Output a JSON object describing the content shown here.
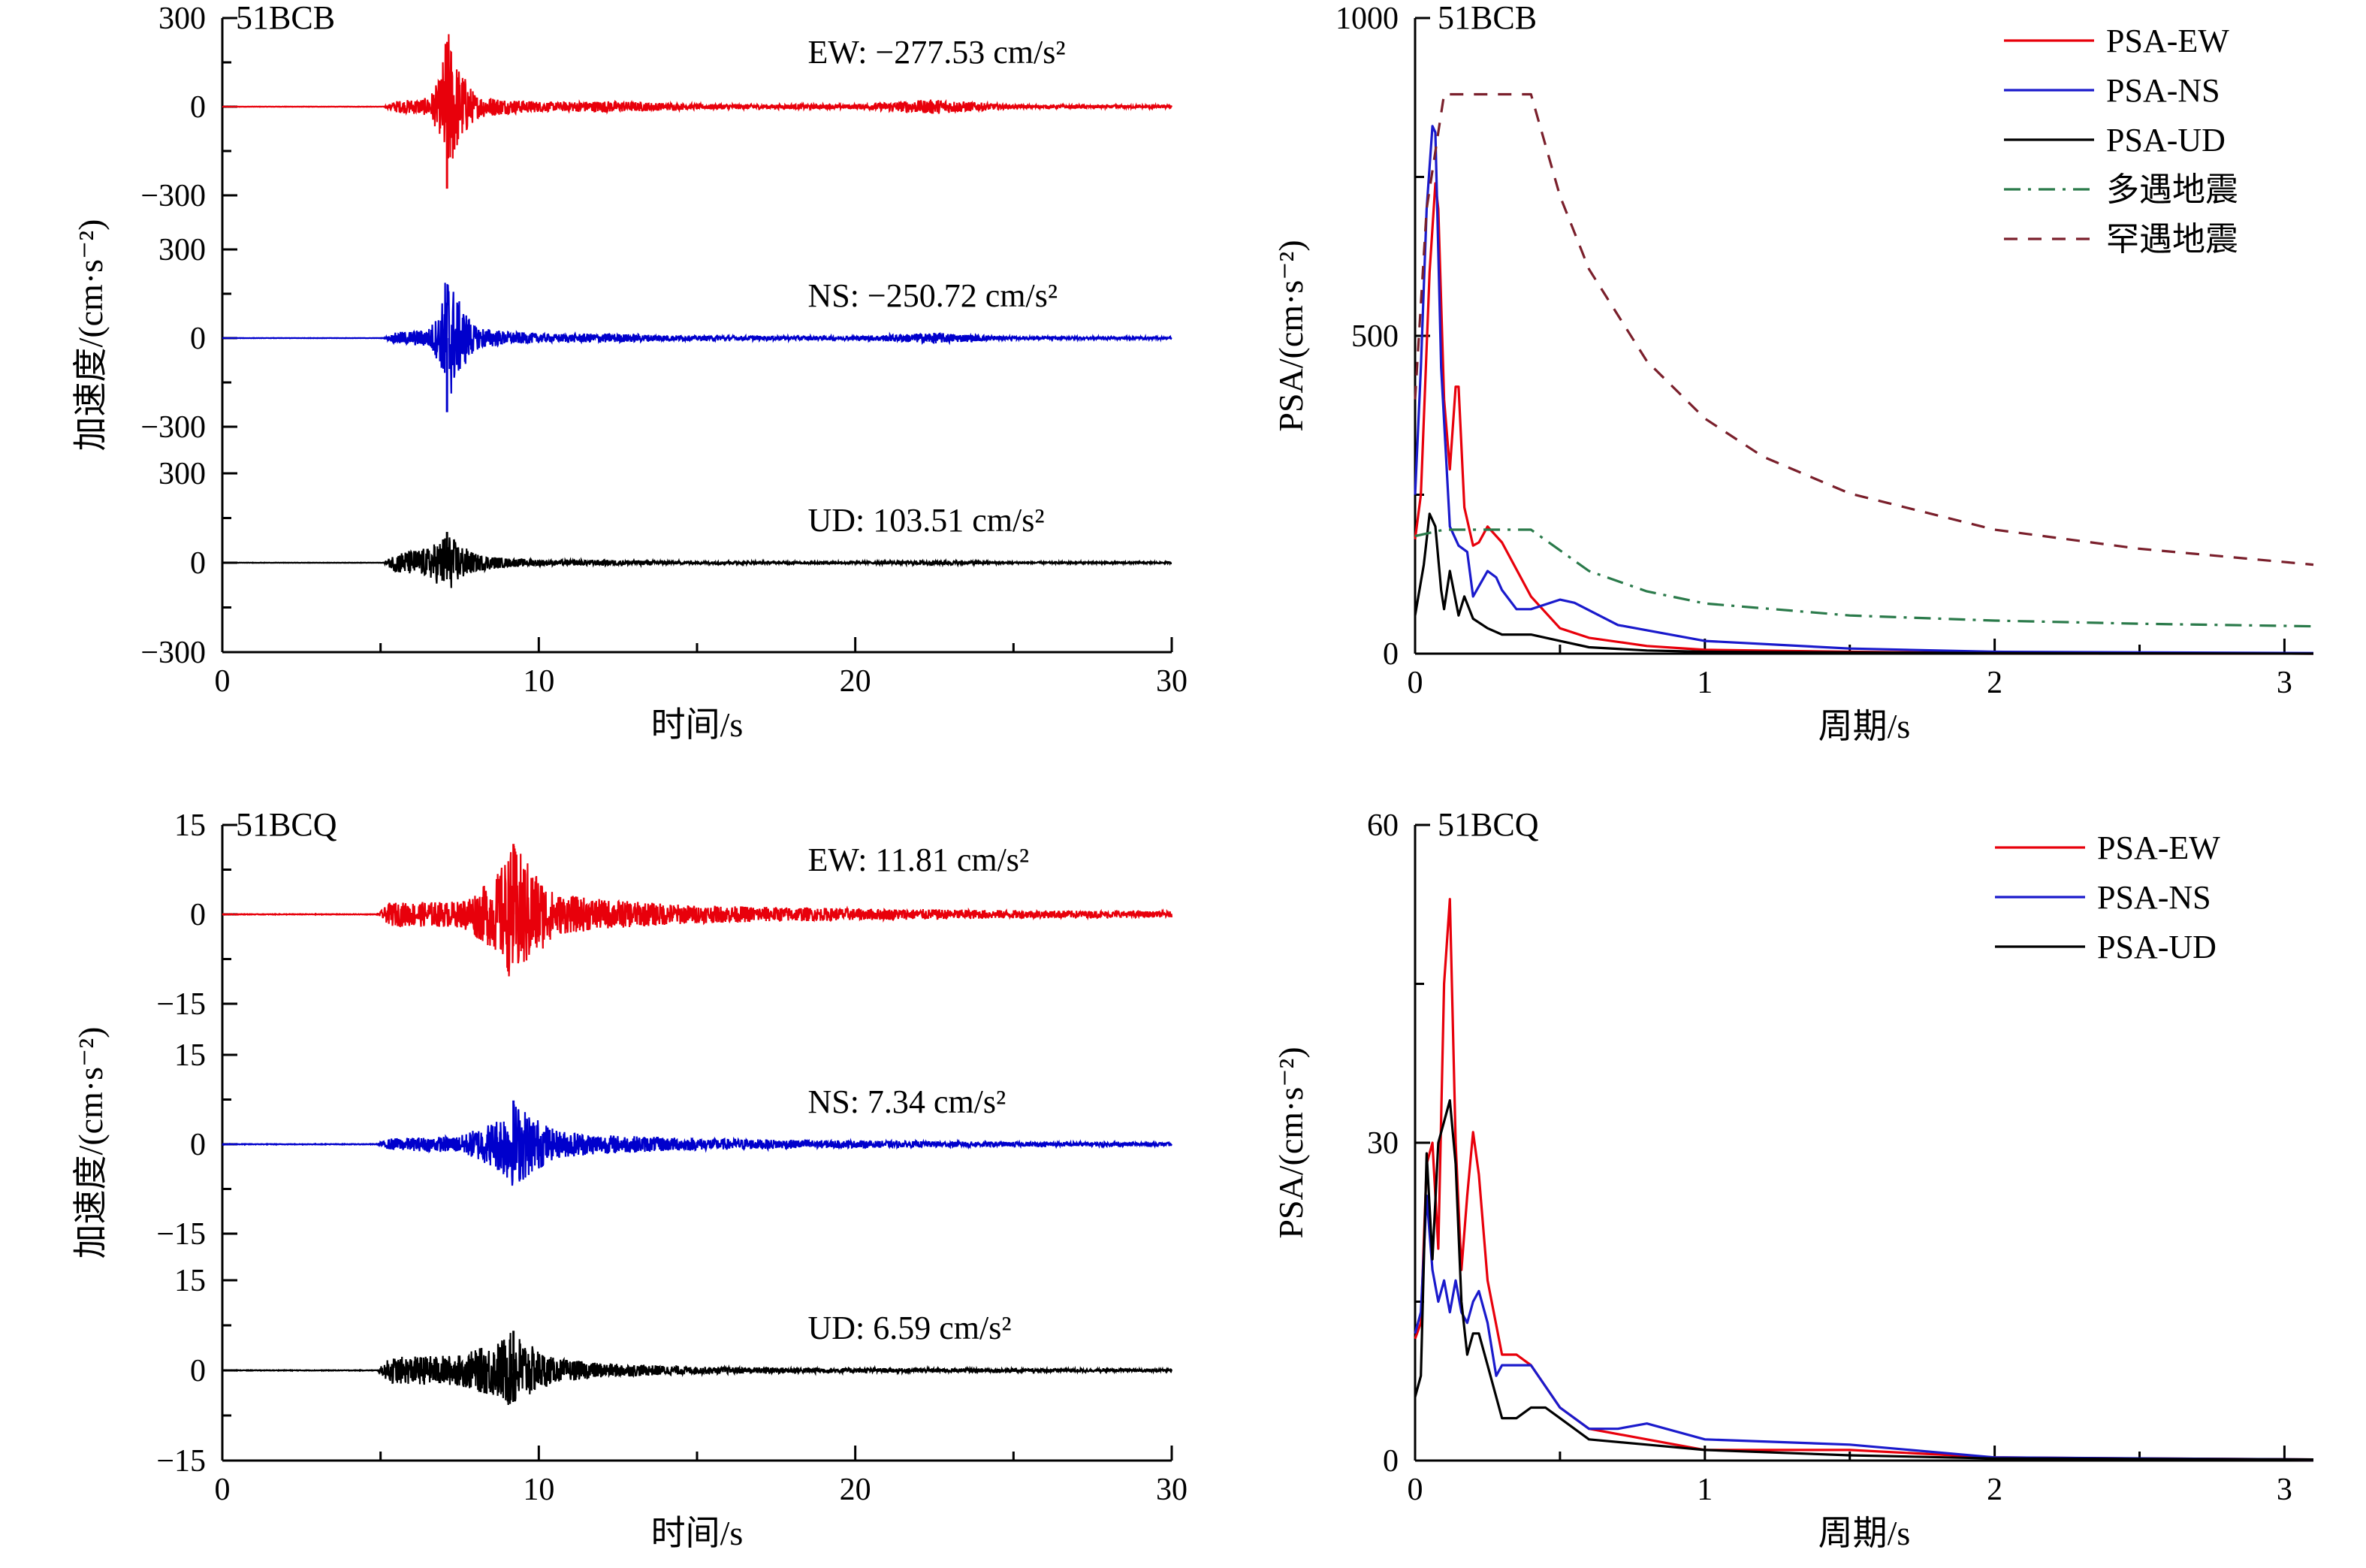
{
  "chart_data": [
    {
      "type": "line",
      "chart": "51BCB acceleration time histories",
      "station": "51BCB",
      "xlabel": "时间/s",
      "ylabel": "加速度/(cm·s⁻²)",
      "xlim": [
        0,
        30
      ],
      "xticks": [
        "0",
        "10",
        "20",
        "30"
      ],
      "series": [
        {
          "name": "EW",
          "color": "#e8000b",
          "ylim": [
            -300,
            300
          ],
          "yticks": [
            "300",
            "0",
            "−300"
          ],
          "peak_label": "EW: −277.53 cm/s²",
          "pga": -277.53,
          "envelope": {
            "t": [
              0,
              5.1,
              5.5,
              6.5,
              6.9,
              7.1,
              7.4,
              8.0,
              9.0,
              10.5,
              12.0,
              15,
              20,
              22.5,
              25,
              30
            ],
            "a": [
              0.5,
              0.5,
              20,
              30,
              100,
              278,
              150,
              40,
              25,
              15,
              20,
              9,
              8,
              25,
              6,
              5
            ]
          }
        },
        {
          "name": "NS",
          "color": "#0000cc",
          "ylim": [
            -300,
            300
          ],
          "yticks": [
            "300",
            "0",
            "−300"
          ],
          "peak_label": "NS: −250.72 cm/s²",
          "pga": -250.72,
          "envelope": {
            "t": [
              0,
              5.1,
              5.5,
              6.5,
              6.9,
              7.1,
              7.4,
              8.0,
              9.0,
              10.5,
              12.0,
              15,
              20,
              22.5,
              25,
              30
            ],
            "a": [
              0.5,
              0.5,
              20,
              30,
              90,
              251,
              140,
              40,
              22,
              14,
              16,
              8,
              7,
              18,
              5,
              4
            ]
          }
        },
        {
          "name": "UD",
          "color": "#000000",
          "ylim": [
            -300,
            300
          ],
          "yticks": [
            "300",
            "0",
            "−300"
          ],
          "peak_label": "UD: 103.51 cm/s²",
          "pga": 103.51,
          "envelope": {
            "t": [
              0,
              5.1,
              5.5,
              6.5,
              6.9,
              7.1,
              7.4,
              8.0,
              9.0,
              10.5,
              12.0,
              15,
              20,
              22.5,
              25,
              30
            ],
            "a": [
              0.5,
              0.5,
              35,
              50,
              80,
              104,
              70,
              30,
              15,
              9,
              10,
              5,
              4,
              8,
              3,
              3
            ]
          }
        }
      ]
    },
    {
      "type": "line",
      "chart": "51BCB pseudo-spectral acceleration",
      "station": "51BCB",
      "xlabel": "周期/s",
      "ylabel": "PSA/(cm·s⁻²)",
      "xlim": [
        0,
        3.1
      ],
      "ylim": [
        0,
        1000
      ],
      "xticks": [
        "0",
        "1",
        "2",
        "3"
      ],
      "yticks": [
        "0",
        "500",
        "1000"
      ],
      "legend": "top-right",
      "series": [
        {
          "name": "PSA-EW",
          "color": "#e8000b",
          "dash": "solid",
          "x": [
            0.0,
            0.02,
            0.05,
            0.07,
            0.08,
            0.1,
            0.12,
            0.14,
            0.15,
            0.17,
            0.2,
            0.22,
            0.25,
            0.3,
            0.4,
            0.5,
            0.6,
            0.8,
            1.0,
            1.5,
            2.0,
            3.1
          ],
          "y": [
            180,
            250,
            600,
            740,
            700,
            400,
            290,
            420,
            420,
            230,
            170,
            175,
            200,
            175,
            90,
            40,
            25,
            12,
            6,
            3,
            1,
            0
          ]
        },
        {
          "name": "PSA-NS",
          "color": "#1a1acc",
          "dash": "solid",
          "x": [
            0.0,
            0.02,
            0.04,
            0.06,
            0.07,
            0.09,
            0.12,
            0.15,
            0.18,
            0.2,
            0.25,
            0.28,
            0.3,
            0.35,
            0.4,
            0.5,
            0.55,
            0.7,
            1.0,
            1.5,
            2.0,
            3.1
          ],
          "y": [
            250,
            450,
            700,
            830,
            820,
            450,
            200,
            170,
            160,
            90,
            130,
            120,
            100,
            70,
            70,
            85,
            80,
            45,
            20,
            8,
            3,
            1
          ]
        },
        {
          "name": "PSA-UD",
          "color": "#000000",
          "dash": "solid",
          "x": [
            0.0,
            0.03,
            0.05,
            0.07,
            0.09,
            0.1,
            0.12,
            0.15,
            0.17,
            0.2,
            0.25,
            0.3,
            0.4,
            0.5,
            0.6,
            0.8,
            1.0,
            2.0,
            3.1
          ],
          "y": [
            60,
            140,
            220,
            200,
            100,
            70,
            130,
            60,
            90,
            55,
            40,
            30,
            30,
            20,
            10,
            5,
            3,
            1,
            0
          ]
        },
        {
          "name": "多遇地震",
          "color": "#2a7a4a",
          "dash": "dashdot",
          "x": [
            0.0,
            0.1,
            0.4,
            0.6,
            0.8,
            1.0,
            1.5,
            2.0,
            2.5,
            3.1
          ],
          "y": [
            185,
            195,
            195,
            130,
            98,
            79,
            60,
            52,
            47,
            43
          ]
        },
        {
          "name": "罕遇地震",
          "color": "#7a1f2b",
          "dash": "dashed",
          "x": [
            0.0,
            0.04,
            0.1,
            0.4,
            0.5,
            0.6,
            0.8,
            1.0,
            1.2,
            1.5,
            2.0,
            2.5,
            3.1
          ],
          "y": [
            400,
            700,
            880,
            880,
            720,
            605,
            460,
            370,
            310,
            252,
            195,
            165,
            140
          ]
        }
      ]
    },
    {
      "type": "line",
      "chart": "51BCQ acceleration time histories",
      "station": "51BCQ",
      "xlabel": "时间/s",
      "ylabel": "加速度/(cm·s⁻²)",
      "xlim": [
        0,
        30
      ],
      "xticks": [
        "0",
        "10",
        "20",
        "30"
      ],
      "series": [
        {
          "name": "EW",
          "color": "#e8000b",
          "ylim": [
            -15,
            15
          ],
          "yticks": [
            "15",
            "0",
            "−15"
          ],
          "peak_label": "EW: 11.81 cm/s²",
          "pga": 11.81,
          "envelope": {
            "t": [
              0,
              4.9,
              5.3,
              7.5,
              8.6,
              9.2,
              9.8,
              10.5,
              12,
              15,
              20,
              25,
              30
            ],
            "a": [
              0.05,
              0.05,
              2.0,
              2.2,
              6.0,
              11.8,
              8.0,
              3.5,
              2.5,
              1.5,
              1.0,
              0.7,
              0.5
            ]
          }
        },
        {
          "name": "NS",
          "color": "#0000cc",
          "ylim": [
            -15,
            15
          ],
          "yticks": [
            "15",
            "0",
            "−15"
          ],
          "peak_label": "NS: 7.34 cm/s²",
          "pga": 7.34,
          "envelope": {
            "t": [
              0,
              4.9,
              5.3,
              7.5,
              8.6,
              9.2,
              9.8,
              10.5,
              12,
              15,
              20,
              25,
              30
            ],
            "a": [
              0.05,
              0.05,
              1.0,
              1.4,
              4.0,
              7.3,
              5.0,
              2.4,
              1.6,
              1.0,
              0.6,
              0.4,
              0.3
            ]
          }
        },
        {
          "name": "UD",
          "color": "#000000",
          "ylim": [
            -15,
            15
          ],
          "yticks": [
            "15",
            "0",
            "−15"
          ],
          "peak_label": "UD: 6.59 cm/s²",
          "pga": 6.59,
          "envelope": {
            "t": [
              0,
              4.9,
              5.3,
              7.5,
              8.6,
              9.2,
              9.8,
              10.5,
              12,
              15,
              20,
              25,
              30
            ],
            "a": [
              0.05,
              0.05,
              2.2,
              2.6,
              4.5,
              6.6,
              4.0,
              2.0,
              1.2,
              0.6,
              0.4,
              0.3,
              0.2
            ]
          }
        }
      ]
    },
    {
      "type": "line",
      "chart": "51BCQ pseudo-spectral acceleration",
      "station": "51BCQ",
      "xlabel": "周期/s",
      "ylabel": "PSA/(cm·s⁻²)",
      "xlim": [
        0,
        3.1
      ],
      "ylim": [
        0,
        60
      ],
      "xticks": [
        "0",
        "1",
        "2",
        "3"
      ],
      "yticks": [
        "0",
        "30",
        "60"
      ],
      "legend": "top-right",
      "series": [
        {
          "name": "PSA-EW",
          "color": "#e8000b",
          "dash": "solid",
          "x": [
            0.0,
            0.02,
            0.04,
            0.06,
            0.08,
            0.1,
            0.12,
            0.14,
            0.16,
            0.18,
            0.2,
            0.22,
            0.25,
            0.3,
            0.35,
            0.4,
            0.5,
            0.6,
            0.8,
            1.0,
            1.5,
            2.0,
            2.5,
            3.1
          ],
          "y": [
            11.5,
            13,
            28,
            30,
            20,
            45,
            53,
            30,
            18,
            25,
            31,
            27,
            17,
            10,
            10,
            9,
            5,
            3,
            2,
            1,
            1,
            0.3,
            0.2,
            0.1
          ]
        },
        {
          "name": "PSA-NS",
          "color": "#1a1acc",
          "dash": "solid",
          "x": [
            0.0,
            0.02,
            0.04,
            0.06,
            0.08,
            0.1,
            0.12,
            0.14,
            0.16,
            0.18,
            0.2,
            0.22,
            0.25,
            0.28,
            0.3,
            0.35,
            0.4,
            0.5,
            0.6,
            0.7,
            0.8,
            1.0,
            1.5,
            2.0,
            3.1
          ],
          "y": [
            12,
            14,
            25,
            18,
            15,
            17,
            14,
            17,
            14,
            13,
            15,
            16,
            13,
            8,
            9,
            9,
            9,
            5,
            3,
            3,
            3.5,
            2,
            1.5,
            0.3,
            0.1
          ]
        },
        {
          "name": "PSA-UD",
          "color": "#000000",
          "dash": "solid",
          "x": [
            0.0,
            0.02,
            0.04,
            0.06,
            0.08,
            0.1,
            0.12,
            0.14,
            0.16,
            0.18,
            0.2,
            0.22,
            0.25,
            0.3,
            0.35,
            0.4,
            0.45,
            0.5,
            0.6,
            0.8,
            1.0,
            1.5,
            2.0,
            3.1
          ],
          "y": [
            6,
            8,
            29,
            19,
            30,
            32,
            34,
            28,
            15,
            10,
            12,
            12,
            9,
            4,
            4,
            5,
            5,
            4,
            2,
            1.5,
            1,
            0.5,
            0.2,
            0.1
          ]
        }
      ]
    }
  ]
}
